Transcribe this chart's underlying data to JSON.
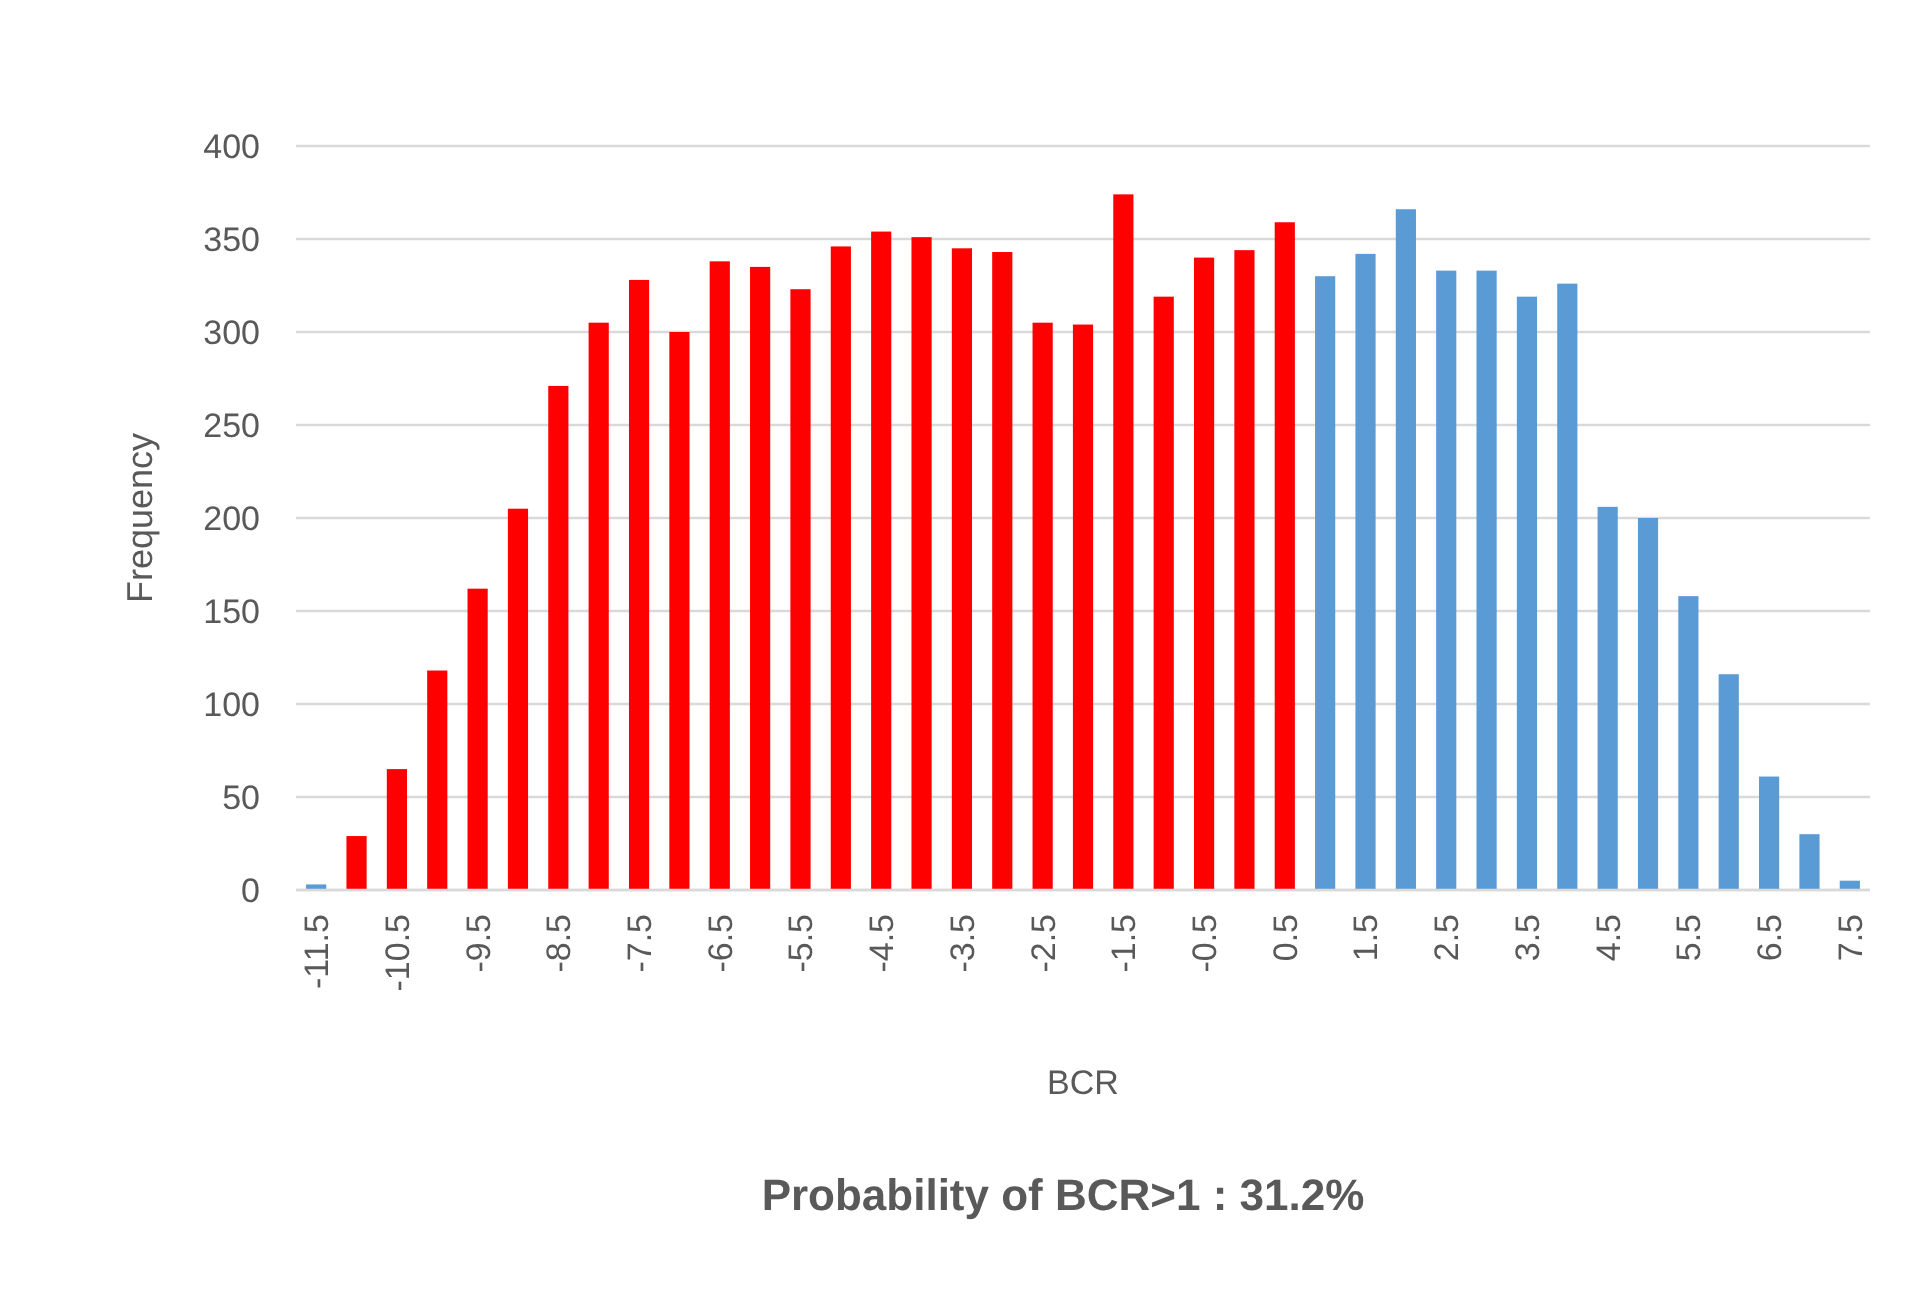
{
  "chart_data": {
    "type": "bar",
    "xlabel": "BCR",
    "ylabel": "Frequency",
    "categories": [
      "-11.5",
      null,
      "-10.5",
      null,
      "-9.5",
      null,
      "-8.5",
      null,
      "-7.5",
      null,
      "-6.5",
      null,
      "-5.5",
      null,
      "-4.5",
      null,
      "-3.5",
      null,
      "-2.5",
      null,
      "-1.5",
      null,
      "-0.5",
      null,
      "0.5",
      null,
      "1.5",
      null,
      "2.5",
      null,
      "3.5",
      null,
      "4.5",
      null,
      "5.5",
      null,
      "6.5",
      null,
      "7.5"
    ],
    "values": [
      3,
      29,
      65,
      118,
      162,
      205,
      271,
      305,
      328,
      300,
      338,
      335,
      323,
      346,
      354,
      351,
      345,
      343,
      305,
      304,
      374,
      319,
      340,
      344,
      359,
      330,
      342,
      366,
      333,
      333,
      319,
      326,
      206,
      200,
      158,
      116,
      61,
      30,
      5
    ],
    "colors": [
      "#5b9bd5",
      "#ff0000",
      "#ff0000",
      "#ff0000",
      "#ff0000",
      "#ff0000",
      "#ff0000",
      "#ff0000",
      "#ff0000",
      "#ff0000",
      "#ff0000",
      "#ff0000",
      "#ff0000",
      "#ff0000",
      "#ff0000",
      "#ff0000",
      "#ff0000",
      "#ff0000",
      "#ff0000",
      "#ff0000",
      "#ff0000",
      "#ff0000",
      "#ff0000",
      "#ff0000",
      "#ff0000",
      "#5b9bd5",
      "#5b9bd5",
      "#5b9bd5",
      "#5b9bd5",
      "#5b9bd5",
      "#5b9bd5",
      "#5b9bd5",
      "#5b9bd5",
      "#5b9bd5",
      "#5b9bd5",
      "#5b9bd5",
      "#5b9bd5",
      "#5b9bd5",
      "#5b9bd5"
    ],
    "ylim": [
      0,
      400
    ],
    "yticks": [
      0,
      50,
      100,
      150,
      200,
      250,
      300,
      350,
      400
    ],
    "grid": "y",
    "annotations": [
      "Probability of BCR>1 : 31.2%"
    ]
  }
}
